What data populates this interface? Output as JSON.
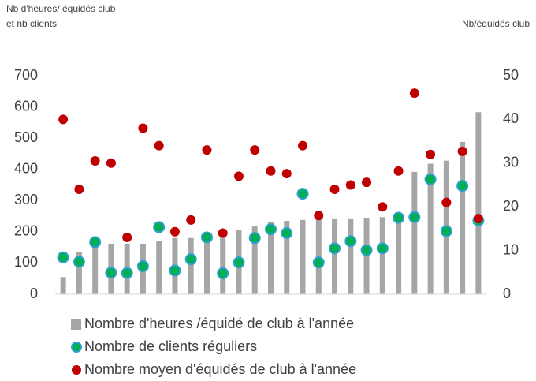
{
  "chart_data": {
    "type": "bar_scatter",
    "y_label": "Nb d'heures/ équidés club et nb clients",
    "y2_label": "Nb/équidés club",
    "categories": [
      null,
      null,
      null,
      null,
      null,
      null,
      null,
      null,
      null,
      null,
      null,
      null,
      null,
      null,
      null,
      null,
      null,
      null,
      null,
      null,
      null,
      null,
      null,
      null,
      null,
      null,
      null
    ],
    "series": [
      {
        "name": "Nombre d'heures /équidé de club à l'année",
        "color": "#a6a6a6",
        "kind": "bar",
        "values": [
          55,
          136,
          170,
          162,
          162,
          162,
          170,
          180,
          180,
          185,
          192,
          205,
          217,
          232,
          235,
          238,
          240,
          242,
          243,
          245,
          247,
          250,
          392,
          418,
          428,
          488,
          583
        ]
      },
      {
        "name": "Nombre de clients réguliers",
        "color": "#00b050",
        "edge": "#2e9fd6",
        "kind": "dot",
        "values": [
          118,
          104,
          167,
          69,
          68,
          90,
          215,
          76,
          112,
          182,
          67,
          102,
          180,
          208,
          196,
          322,
          102,
          147,
          170,
          141,
          147,
          245,
          247,
          368,
          202,
          347,
          236
        ]
      },
      {
        "name": "Nombre moyen d'équidés de club à l'année",
        "color": "#c00000",
        "kind": "dot",
        "axis": "y2",
        "values": [
          40,
          24,
          30.5,
          30,
          13,
          38,
          34,
          14.3,
          17,
          33,
          14,
          27,
          33,
          28.2,
          27.6,
          34,
          18,
          24,
          25,
          25.6,
          20,
          28.2,
          46,
          32,
          21,
          32.7,
          17.3
        ]
      }
    ],
    "ylim": [
      0,
      700
    ],
    "yticks": [
      0,
      100,
      200,
      300,
      400,
      500,
      600,
      700
    ],
    "y2lim": [
      0,
      50
    ],
    "y2ticks": [
      0,
      10,
      20,
      30,
      40,
      50
    ],
    "legend": "bottom"
  }
}
